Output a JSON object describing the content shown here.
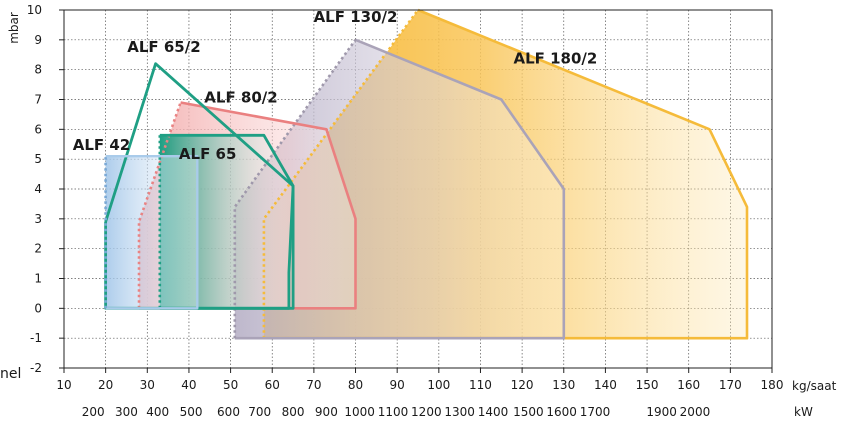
{
  "chart_data": {
    "type": "area",
    "title": "",
    "ylabel": "mbar",
    "xlabel": "kg/saat",
    "x2label": "kW",
    "xlim": [
      10,
      180
    ],
    "ylim": [
      -2,
      10
    ],
    "grid": true,
    "x_ticks": [
      10,
      20,
      30,
      40,
      50,
      60,
      70,
      80,
      90,
      100,
      110,
      120,
      130,
      140,
      150,
      160,
      170,
      180
    ],
    "y_ticks": [
      -2,
      -1,
      0,
      1,
      2,
      3,
      4,
      5,
      6,
      7,
      8,
      9,
      10
    ],
    "kw_ticks": [
      {
        "label": "200",
        "x": 17.0
      },
      {
        "label": "300",
        "x": 25.0
      },
      {
        "label": "400",
        "x": 32.5
      },
      {
        "label": "500",
        "x": 40.5
      },
      {
        "label": "600",
        "x": 49.5
      },
      {
        "label": "700",
        "x": 57.0
      },
      {
        "label": "800",
        "x": 65.0
      },
      {
        "label": "900",
        "x": 73.0
      },
      {
        "label": "1000",
        "x": 81.0
      },
      {
        "label": "1100",
        "x": 89.0
      },
      {
        "label": "1200",
        "x": 97.0
      },
      {
        "label": "1300",
        "x": 105.0
      },
      {
        "label": "1400",
        "x": 113.0
      },
      {
        "label": "1500",
        "x": 121.5
      },
      {
        "label": "1600",
        "x": 129.5
      },
      {
        "label": "1700",
        "x": 137.5
      },
      {
        "label": "1900",
        "x": 153.5
      },
      {
        "label": "2000",
        "x": 161.5
      }
    ],
    "series": [
      {
        "name": "ALF 180/2",
        "color": "#f5bb3a",
        "outline": [
          [
            95,
            10
          ],
          [
            165,
            6
          ],
          [
            174,
            3.4
          ],
          [
            174,
            -1
          ],
          [
            58,
            -1
          ],
          [
            58,
            3
          ]
        ],
        "dotted": [
          [
            58,
            -1
          ],
          [
            58,
            3
          ],
          [
            95,
            10
          ]
        ]
      },
      {
        "name": "ALF 130/2",
        "color": "#aaa3b8",
        "outline": [
          [
            80,
            9
          ],
          [
            115,
            7
          ],
          [
            130,
            4
          ],
          [
            130,
            -1
          ],
          [
            51,
            -1
          ],
          [
            51,
            3.4
          ]
        ],
        "dotted": [
          [
            51,
            -1
          ],
          [
            51,
            3.4
          ],
          [
            80,
            9
          ]
        ]
      },
      {
        "name": "ALF 80/2",
        "color": "#ea8080",
        "outline": [
          [
            38,
            6.9
          ],
          [
            73,
            6
          ],
          [
            80,
            3
          ],
          [
            80,
            0
          ],
          [
            28,
            0
          ],
          [
            28,
            2.9
          ]
        ],
        "dotted": [
          [
            28,
            0
          ],
          [
            28,
            2.9
          ],
          [
            38,
            6.9
          ]
        ]
      },
      {
        "name": "ALF 65/2",
        "color": "#1f9f84",
        "outline": [
          [
            20,
            2.9
          ],
          [
            32,
            8.2
          ],
          [
            65,
            4.1
          ],
          [
            65,
            0
          ],
          [
            20,
            0
          ]
        ],
        "dotted": []
      },
      {
        "name": "ALF 65",
        "color": "#1f9f84",
        "outline": [
          [
            33,
            5.8
          ],
          [
            58,
            5.8
          ],
          [
            65,
            4.1
          ],
          [
            64,
            1.2
          ],
          [
            64,
            0
          ],
          [
            33,
            0
          ]
        ],
        "dotted": [
          [
            33,
            0
          ],
          [
            33,
            5.8
          ]
        ]
      },
      {
        "name": "ALF 42",
        "color": "#a9cbea",
        "outline": [
          [
            20,
            5.1
          ],
          [
            42,
            5.1
          ],
          [
            42,
            0
          ],
          [
            20,
            0
          ]
        ],
        "dotted": [
          [
            20,
            0
          ],
          [
            20,
            5.1
          ]
        ]
      }
    ]
  },
  "edge_text": "nel"
}
